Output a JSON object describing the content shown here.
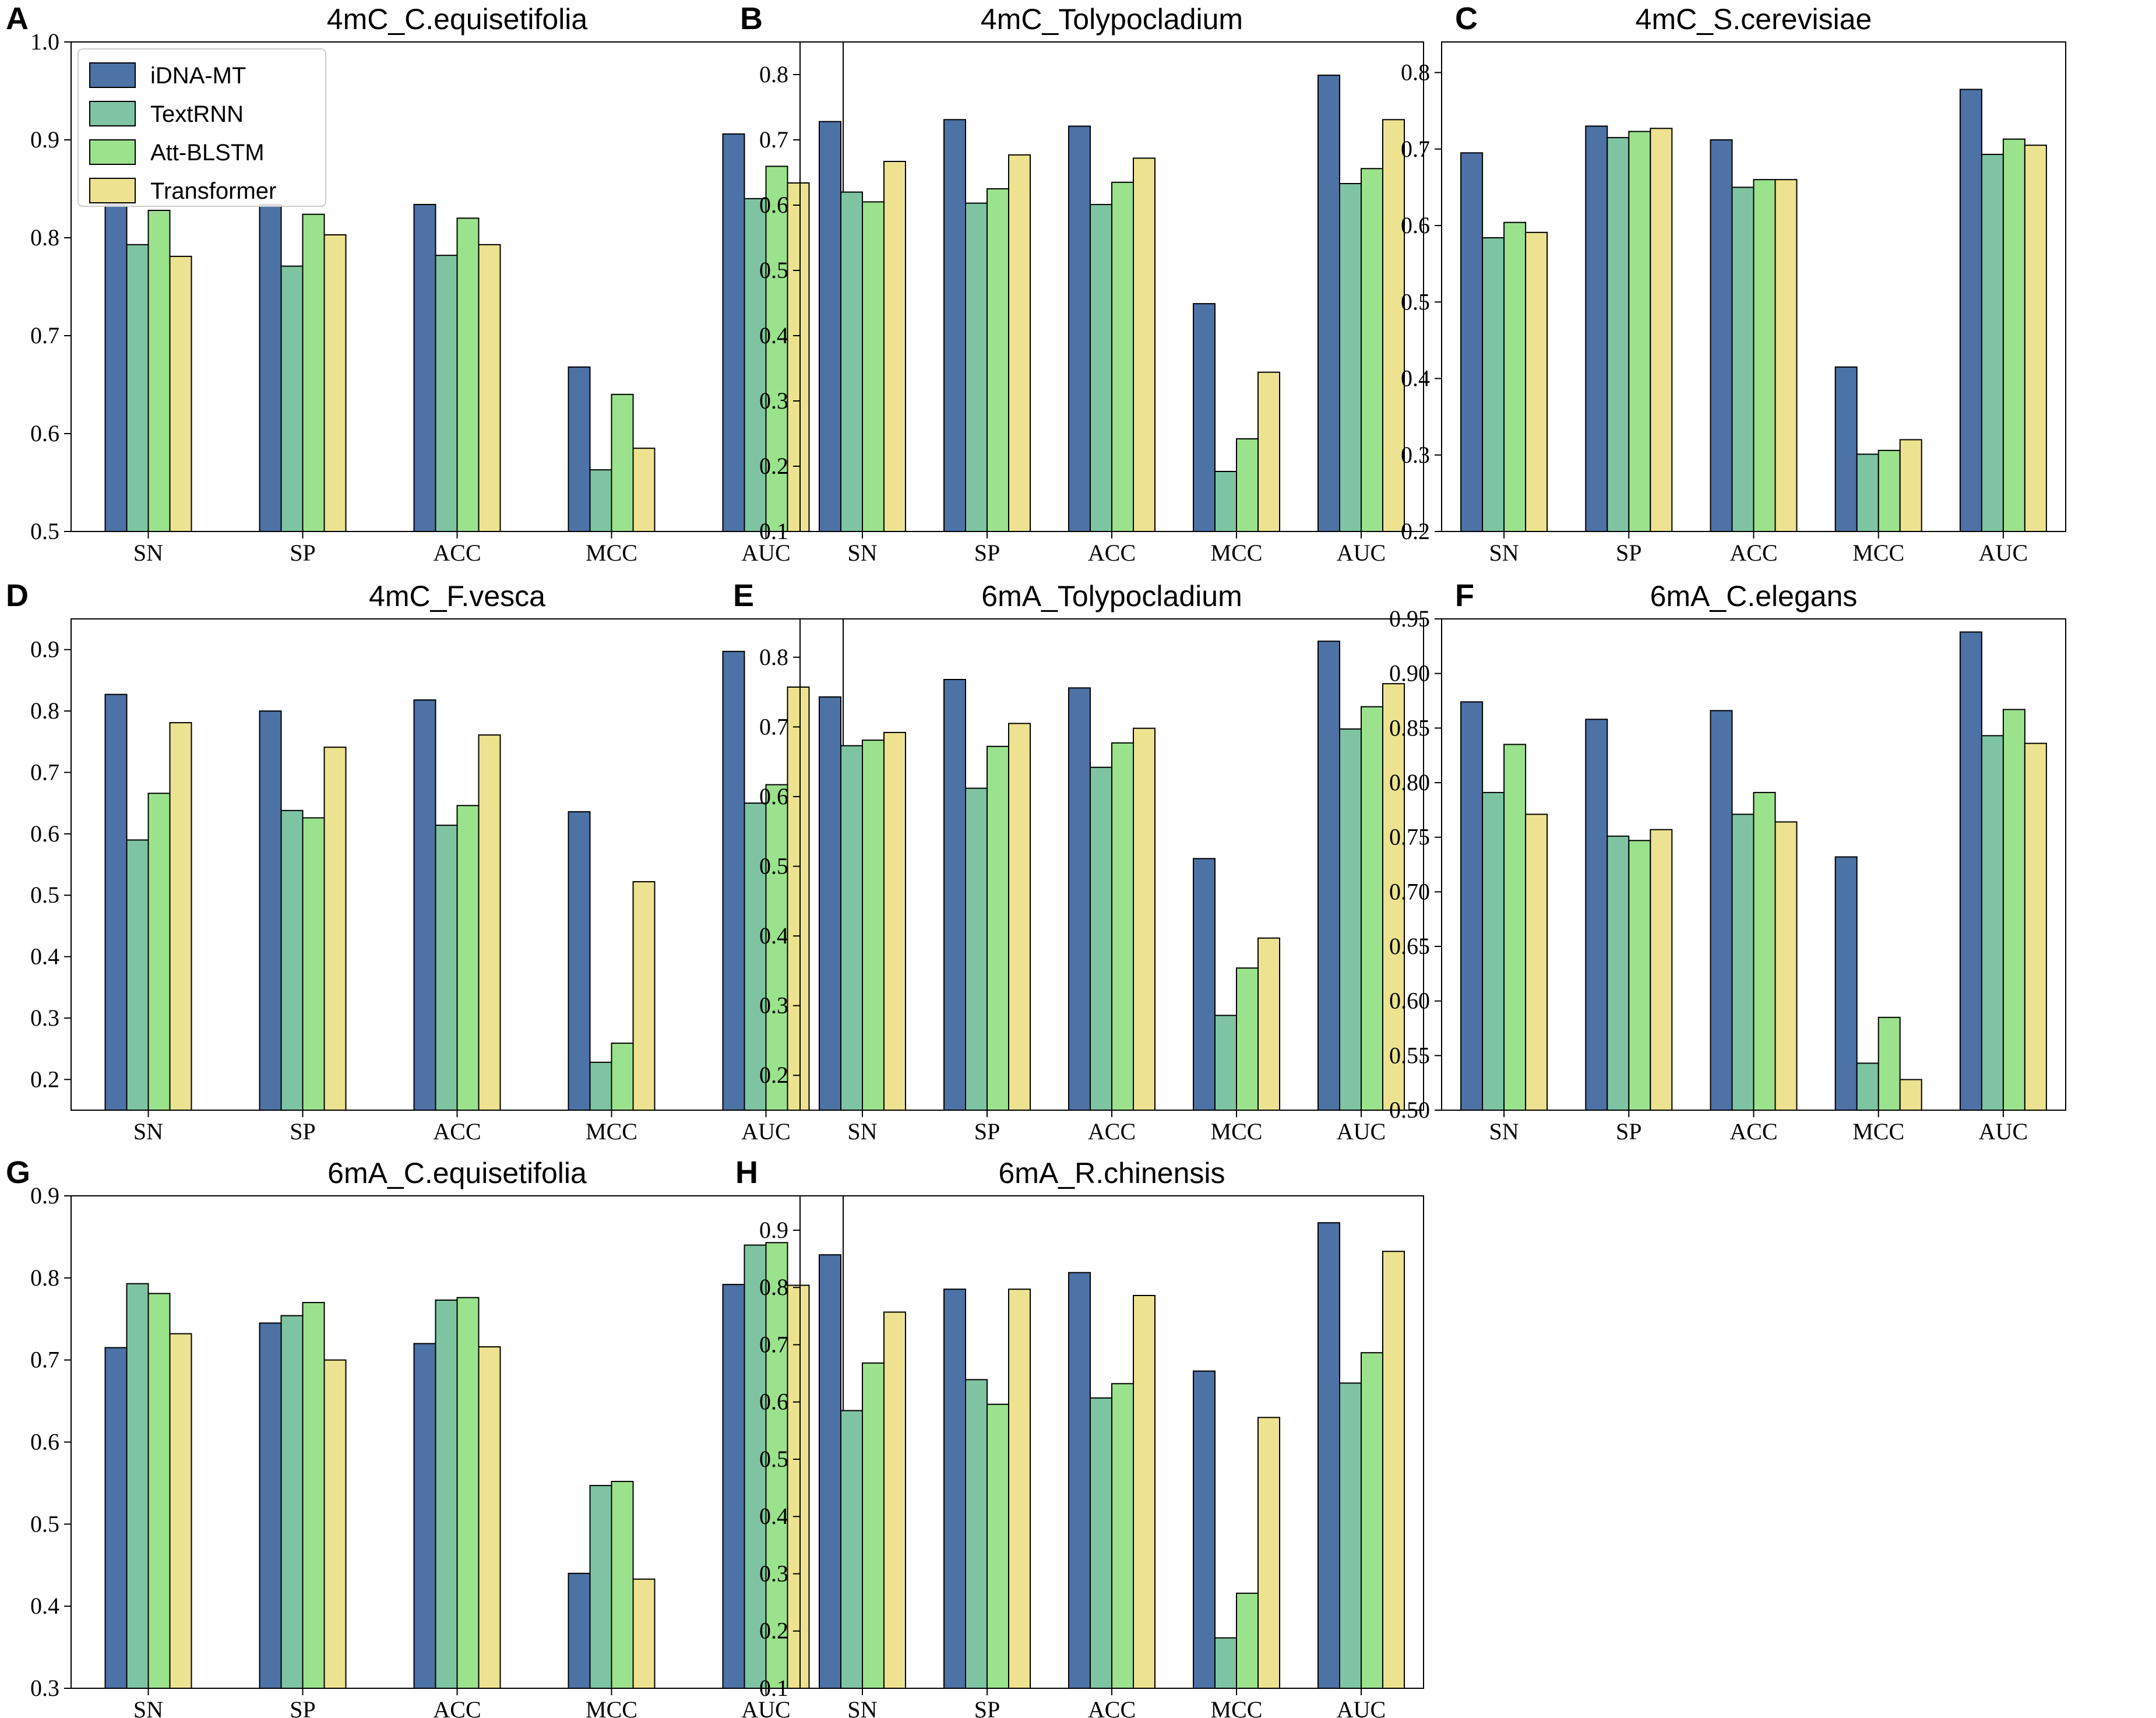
{
  "figure": {
    "series": [
      {
        "name": "iDNA-MT",
        "color": "#4c72a6"
      },
      {
        "name": "TextRNN",
        "color": "#7ec4a3"
      },
      {
        "name": "Att-BLSTM",
        "color": "#9be28c"
      },
      {
        "name": "Transformer",
        "color": "#ede28f"
      }
    ],
    "bar_edge_color": "#000000"
  },
  "chart_data": [
    {
      "type": "bar",
      "panel": "A",
      "title": "4mC_C.equisetifolia",
      "categories": [
        "SN",
        "SP",
        "ACC",
        "MCC",
        "AUC"
      ],
      "ylim": [
        0.5,
        1.0
      ],
      "yticks": [
        "0.5",
        "0.6",
        "0.7",
        "0.8",
        "0.9",
        "1.0"
      ],
      "legend": "top-left",
      "series": [
        {
          "name": "iDNA-MT",
          "values": [
            0.834,
            0.834,
            0.834,
            0.668,
            0.906
          ]
        },
        {
          "name": "TextRNN",
          "values": [
            0.793,
            0.771,
            0.782,
            0.563,
            0.84
          ]
        },
        {
          "name": "Att-BLSTM",
          "values": [
            0.828,
            0.824,
            0.82,
            0.64,
            0.873
          ]
        },
        {
          "name": "Transformer",
          "values": [
            0.781,
            0.803,
            0.793,
            0.585,
            0.856
          ]
        }
      ]
    },
    {
      "type": "bar",
      "panel": "B",
      "title": "4mC_Tolypocladium",
      "categories": [
        "SN",
        "SP",
        "ACC",
        "MCC",
        "AUC"
      ],
      "ylim": [
        0.1,
        0.85
      ],
      "yticks": [
        "0.1",
        "0.2",
        "0.3",
        "0.4",
        "0.5",
        "0.6",
        "0.7",
        "0.8"
      ],
      "series": [
        {
          "name": "iDNA-MT",
          "values": [
            0.728,
            0.731,
            0.721,
            0.449,
            0.799
          ]
        },
        {
          "name": "TextRNN",
          "values": [
            0.62,
            0.603,
            0.601,
            0.192,
            0.633
          ]
        },
        {
          "name": "Att-BLSTM",
          "values": [
            0.605,
            0.625,
            0.635,
            0.242,
            0.656
          ]
        },
        {
          "name": "Transformer",
          "values": [
            0.667,
            0.677,
            0.672,
            0.344,
            0.731
          ]
        }
      ]
    },
    {
      "type": "bar",
      "panel": "C",
      "title": "4mC_S.cerevisiae",
      "categories": [
        "SN",
        "SP",
        "ACC",
        "MCC",
        "AUC"
      ],
      "ylim": [
        0.2,
        0.84
      ],
      "yticks": [
        "0.2",
        "0.3",
        "0.4",
        "0.5",
        "0.6",
        "0.7",
        "0.8"
      ],
      "series": [
        {
          "name": "iDNA-MT",
          "values": [
            0.695,
            0.73,
            0.712,
            0.415,
            0.778
          ]
        },
        {
          "name": "TextRNN",
          "values": [
            0.584,
            0.715,
            0.65,
            0.301,
            0.693
          ]
        },
        {
          "name": "Att-BLSTM",
          "values": [
            0.604,
            0.723,
            0.66,
            0.306,
            0.713
          ]
        },
        {
          "name": "Transformer",
          "values": [
            0.591,
            0.727,
            0.66,
            0.32,
            0.705
          ]
        }
      ]
    },
    {
      "type": "bar",
      "panel": "D",
      "title": "4mC_F.vesca",
      "categories": [
        "SN",
        "SP",
        "ACC",
        "MCC",
        "AUC"
      ],
      "ylim": [
        0.15,
        0.95
      ],
      "yticks": [
        "0.2",
        "0.3",
        "0.4",
        "0.5",
        "0.6",
        "0.7",
        "0.8",
        "0.9"
      ],
      "series": [
        {
          "name": "iDNA-MT",
          "values": [
            0.827,
            0.8,
            0.818,
            0.636,
            0.897
          ]
        },
        {
          "name": "TextRNN",
          "values": [
            0.59,
            0.638,
            0.614,
            0.228,
            0.65
          ]
        },
        {
          "name": "Att-BLSTM",
          "values": [
            0.666,
            0.626,
            0.646,
            0.259,
            0.68
          ]
        },
        {
          "name": "Transformer",
          "values": [
            0.781,
            0.741,
            0.761,
            0.522,
            0.839
          ]
        }
      ]
    },
    {
      "type": "bar",
      "panel": "E",
      "title": "6mA_Tolypocladium",
      "categories": [
        "SN",
        "SP",
        "ACC",
        "MCC",
        "AUC"
      ],
      "ylim": [
        0.15,
        0.855
      ],
      "yticks": [
        "0.2",
        "0.3",
        "0.4",
        "0.5",
        "0.6",
        "0.7",
        "0.8"
      ],
      "series": [
        {
          "name": "iDNA-MT",
          "values": [
            0.743,
            0.768,
            0.756,
            0.511,
            0.823
          ]
        },
        {
          "name": "TextRNN",
          "values": [
            0.673,
            0.612,
            0.642,
            0.286,
            0.697
          ]
        },
        {
          "name": "Att-BLSTM",
          "values": [
            0.681,
            0.672,
            0.677,
            0.354,
            0.729
          ]
        },
        {
          "name": "Transformer",
          "values": [
            0.692,
            0.705,
            0.698,
            0.397,
            0.762
          ]
        }
      ]
    },
    {
      "type": "bar",
      "panel": "F",
      "title": "6mA_C.elegans",
      "categories": [
        "SN",
        "SP",
        "ACC",
        "MCC",
        "AUC"
      ],
      "ylim": [
        0.5,
        0.95
      ],
      "yticks": [
        "0.50",
        "0.55",
        "0.60",
        "0.65",
        "0.70",
        "0.75",
        "0.80",
        "0.85",
        "0.90",
        "0.95"
      ],
      "series": [
        {
          "name": "iDNA-MT",
          "values": [
            0.874,
            0.858,
            0.866,
            0.732,
            0.938
          ]
        },
        {
          "name": "TextRNN",
          "values": [
            0.791,
            0.751,
            0.771,
            0.543,
            0.843
          ]
        },
        {
          "name": "Att-BLSTM",
          "values": [
            0.835,
            0.747,
            0.791,
            0.585,
            0.867
          ]
        },
        {
          "name": "Transformer",
          "values": [
            0.771,
            0.757,
            0.764,
            0.528,
            0.836
          ]
        }
      ]
    },
    {
      "type": "bar",
      "panel": "G",
      "title": "6mA_C.equisetifolia",
      "categories": [
        "SN",
        "SP",
        "ACC",
        "MCC",
        "AUC"
      ],
      "ylim": [
        0.3,
        0.9
      ],
      "yticks": [
        "0.3",
        "0.4",
        "0.5",
        "0.6",
        "0.7",
        "0.8",
        "0.9"
      ],
      "series": [
        {
          "name": "iDNA-MT",
          "values": [
            0.715,
            0.745,
            0.72,
            0.44,
            0.792
          ]
        },
        {
          "name": "TextRNN",
          "values": [
            0.793,
            0.754,
            0.773,
            0.547,
            0.84
          ]
        },
        {
          "name": "Att-BLSTM",
          "values": [
            0.781,
            0.77,
            0.776,
            0.552,
            0.843
          ]
        },
        {
          "name": "Transformer",
          "values": [
            0.732,
            0.7,
            0.716,
            0.433,
            0.791
          ]
        }
      ]
    },
    {
      "type": "bar",
      "panel": "H",
      "title": "6mA_R.chinensis",
      "categories": [
        "SN",
        "SP",
        "ACC",
        "MCC",
        "AUC"
      ],
      "ylim": [
        0.1,
        0.96
      ],
      "yticks": [
        "0.1",
        "0.2",
        "0.3",
        "0.4",
        "0.5",
        "0.6",
        "0.7",
        "0.8",
        "0.9"
      ],
      "series": [
        {
          "name": "iDNA-MT",
          "values": [
            0.857,
            0.797,
            0.826,
            0.654,
            0.913
          ]
        },
        {
          "name": "TextRNN",
          "values": [
            0.585,
            0.639,
            0.607,
            0.188,
            0.633
          ]
        },
        {
          "name": "Att-BLSTM",
          "values": [
            0.668,
            0.596,
            0.632,
            0.266,
            0.686
          ]
        },
        {
          "name": "Transformer",
          "values": [
            0.757,
            0.797,
            0.786,
            0.573,
            0.863
          ]
        }
      ]
    }
  ]
}
